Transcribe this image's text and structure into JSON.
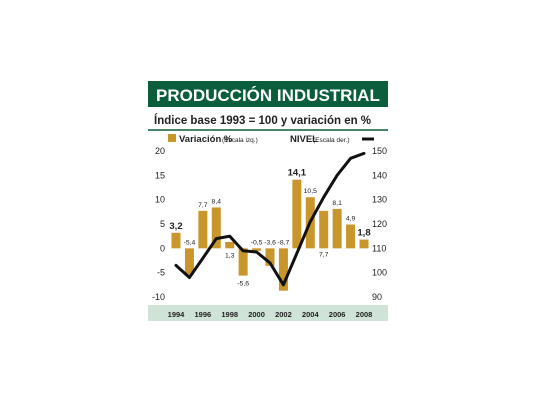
{
  "title": "PRODUCCIÓN INDUSTRIAL",
  "subtitle": "Índice base 1993 = 100 y variación en %",
  "colors": {
    "header_bg": "#0b5e3c",
    "header_text": "#ffffff",
    "bar": "#c8962a",
    "line": "#111111",
    "axis_band": "#cfe3d6",
    "divider": "#0b5e3c"
  },
  "chart_data": {
    "type": "bar+line",
    "legend": {
      "bars_label": "Variación %",
      "bars_scale": "(Escala izq.)",
      "line_label": "NIVEL",
      "line_scale": "(Escala der.)",
      "placement": "top"
    },
    "x_ticks": [
      "1994",
      "1996",
      "1998",
      "2000",
      "2002",
      "2004",
      "2006",
      "2008"
    ],
    "left_axis": {
      "ticks": [
        20,
        15,
        10,
        5,
        0,
        -5,
        -10
      ],
      "ylim": [
        -10,
        20
      ]
    },
    "right_axis": {
      "ticks": [
        150,
        140,
        130,
        120,
        110,
        100,
        90
      ],
      "ylim": [
        90,
        150
      ]
    },
    "grid": false,
    "bars": {
      "name": "Variación %",
      "years": [
        1994,
        1995,
        1996,
        1997,
        1998,
        1999,
        2000,
        2001,
        2002,
        2003,
        2004,
        2005,
        2006,
        2007,
        2008
      ],
      "values": [
        3.2,
        -5.4,
        7.7,
        8.4,
        1.3,
        -5.6,
        -0.5,
        -3.6,
        -8.7,
        14.1,
        10.5,
        7.7,
        8.1,
        4.9,
        1.8
      ],
      "labels": [
        "3,2",
        "-5,4",
        "7,7",
        "8,4",
        "1,3",
        "-5,6",
        "-0,5",
        "-3,6",
        "-8,7",
        "14,1",
        "10,5",
        "7,7",
        "8,1",
        "4,9",
        "1,8"
      ]
    },
    "line": {
      "name": "NIVEL",
      "x": [
        1994,
        1995,
        1996,
        1997,
        1998,
        1998.5,
        1999,
        2000,
        2001,
        2002,
        2003,
        2004,
        2005,
        2006,
        2007,
        2008
      ],
      "values": [
        103,
        98,
        106,
        114,
        115,
        112,
        109,
        108.5,
        104,
        95,
        108,
        121,
        131,
        140,
        147,
        149
      ]
    }
  }
}
